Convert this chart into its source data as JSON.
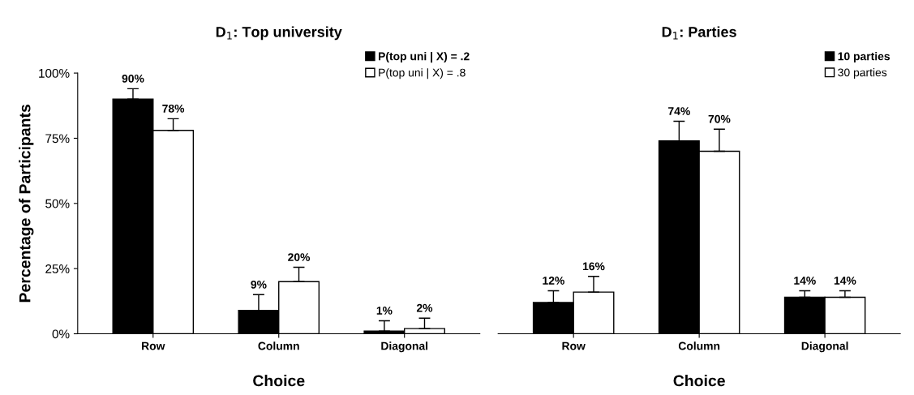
{
  "chart_data": [
    {
      "type": "bar",
      "title": "D$_{1}$: Top university",
      "xlabel": "Choice",
      "ylabel": "Percentage of Participants",
      "categories": [
        "Row",
        "Column",
        "Diagonal"
      ],
      "series": [
        {
          "name": "P(top uni | X) = .2",
          "color": "#000000",
          "values": [
            90,
            9,
            1
          ],
          "errors": [
            [
              90,
              94
            ],
            [
              9,
              15
            ],
            [
              1,
              5
            ]
          ],
          "value_labels": [
            "90%",
            "9%",
            "1%"
          ]
        },
        {
          "name": "P(top uni | X) = .8",
          "color": "#ffffff",
          "values": [
            78,
            20,
            2
          ],
          "errors": [
            [
              78,
              82.5
            ],
            [
              20,
              25.5
            ],
            [
              2,
              6
            ]
          ],
          "value_labels": [
            "78%",
            "20%",
            "2%"
          ]
        }
      ],
      "ylim": [
        0,
        100
      ],
      "yticks": [
        {
          "value": 0,
          "label": "0%"
        },
        {
          "value": 25,
          "label": "25%"
        },
        {
          "value": 50,
          "label": "50%"
        },
        {
          "value": 75,
          "label": "75%"
        },
        {
          "value": 100,
          "label": "100%"
        }
      ],
      "legend": "top right",
      "grid": false
    },
    {
      "type": "bar",
      "title": "D$_{1}$: Parties",
      "xlabel": "Choice",
      "categories": [
        "Row",
        "Column",
        "Diagonal"
      ],
      "series": [
        {
          "name": "10 parties",
          "color": "#000000",
          "values": [
            12,
            74,
            14
          ],
          "errors": [
            [
              12,
              16.5
            ],
            [
              74,
              81.5
            ],
            [
              14,
              16.5
            ]
          ],
          "value_labels": [
            "12%",
            "74%",
            "14%"
          ]
        },
        {
          "name": "30 parties",
          "color": "#ffffff",
          "values": [
            16,
            70,
            14
          ],
          "errors": [
            [
              16,
              22
            ],
            [
              70,
              78.5
            ],
            [
              14,
              16.5
            ]
          ],
          "value_labels": [
            "16%",
            "70%",
            "14%"
          ]
        }
      ],
      "ylim": [
        0,
        100
      ],
      "tick_labels": "x",
      "legend": "top right",
      "grid": false
    }
  ]
}
